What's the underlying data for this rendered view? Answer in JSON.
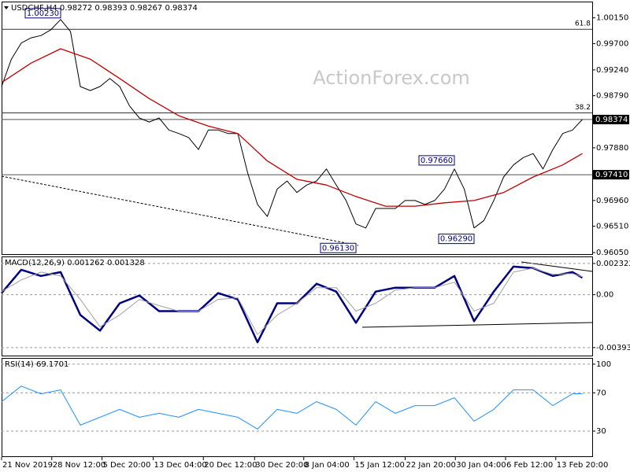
{
  "chart_data": [
    {
      "type": "line",
      "title": "USDCHF,H4  0.98272 0.98393 0.98267 0.98374",
      "watermark": "ActionForex.com",
      "xlim": [
        0,
        60
      ],
      "ylim": [
        0.9601,
        1.0042
      ],
      "yticks": [
        {
          "value": 1.0015,
          "label": "1.00150"
        },
        {
          "value": 0.997,
          "label": "0.99700"
        },
        {
          "value": 0.9924,
          "label": "0.99240"
        },
        {
          "value": 0.9879,
          "label": "0.98790"
        },
        {
          "value": 0.9788,
          "label": "0.97880"
        },
        {
          "value": 0.9696,
          "label": "0.96960"
        },
        {
          "value": 0.9651,
          "label": "0.96510"
        },
        {
          "value": 0.9605,
          "label": "0.96050"
        }
      ],
      "grid": false,
      "series": [
        {
          "color": "#000000",
          "x": [
            0,
            1,
            2,
            3,
            4,
            5,
            6,
            7,
            8,
            9,
            10,
            11,
            12,
            13,
            14,
            15,
            16,
            17,
            18,
            19,
            20,
            21,
            22,
            23,
            24,
            25,
            26,
            27,
            28,
            29,
            30,
            31,
            32,
            33,
            34,
            35,
            36,
            37,
            38,
            39,
            40,
            41,
            42,
            43,
            44,
            45,
            46,
            47,
            48,
            49,
            50,
            51,
            52,
            53,
            54,
            55,
            56,
            57,
            58,
            59
          ],
          "values": [
            0.9895,
            0.9943,
            0.9971,
            0.998,
            0.9984,
            0.9994,
            1.0012,
            0.9991,
            0.9895,
            0.9888,
            0.9895,
            0.9909,
            0.9895,
            0.9861,
            0.984,
            0.9833,
            0.984,
            0.9819,
            0.9813,
            0.9806,
            0.9785,
            0.9819,
            0.9819,
            0.9813,
            0.9813,
            0.9744,
            0.9689,
            0.9668,
            0.9716,
            0.973,
            0.971,
            0.9723,
            0.973,
            0.9751,
            0.9723,
            0.9696,
            0.9655,
            0.9648,
            0.9682,
            0.9682,
            0.9682,
            0.9696,
            0.9696,
            0.9689,
            0.9696,
            0.9716,
            0.9751,
            0.9716,
            0.9648,
            0.9661,
            0.9696,
            0.9737,
            0.9758,
            0.9771,
            0.9778,
            0.9751,
            0.9785,
            0.9813,
            0.9819,
            0.98374
          ]
        },
        {
          "color": "#c00000",
          "x": [
            0,
            3,
            6,
            9,
            12,
            15,
            18,
            21,
            24,
            27,
            30,
            33,
            36,
            39,
            42,
            45,
            48,
            51,
            54,
            57,
            59
          ],
          "values": [
            0.9902,
            0.9936,
            0.9961,
            0.9943,
            0.9909,
            0.9874,
            0.9844,
            0.9826,
            0.9813,
            0.9765,
            0.9733,
            0.9723,
            0.9703,
            0.9686,
            0.9686,
            0.9692,
            0.9696,
            0.971,
            0.9737,
            0.9758,
            0.9778
          ]
        }
      ],
      "fib_levels": [
        {
          "value": 0.9995,
          "label": "61.8"
        },
        {
          "value": 0.9849,
          "label": "38.2"
        }
      ],
      "hlines": [
        {
          "value": 0.98374,
          "label": "0.98374"
        },
        {
          "value": 0.9741,
          "label": "0.97410"
        }
      ],
      "annotations": [
        {
          "x": 6,
          "value": 1.0023,
          "label": "1.00230"
        },
        {
          "x": 46,
          "value": 0.9766,
          "label": "0.97660"
        },
        {
          "x": 36,
          "value": 0.9613,
          "label": "0.96130"
        },
        {
          "x": 48,
          "value": 0.9629,
          "label": "0.96290"
        }
      ]
    },
    {
      "type": "line",
      "title": "MACD(12,26,9) 0.001262 0.001328",
      "xlim": [
        0,
        60
      ],
      "ylim": [
        -0.004527,
        0.002786
      ],
      "yticks": [
        0.002322,
        {
          "value": 0,
          "label": "0.00"
        },
        -0.003932
      ],
      "grid": true,
      "series": [
        {
          "color": "#000080",
          "x": [
            0,
            2,
            4,
            6,
            8,
            10,
            12,
            14,
            16,
            18,
            20,
            22,
            24,
            26,
            28,
            30,
            32,
            34,
            36,
            38,
            40,
            42,
            44,
            46,
            48,
            50,
            52,
            54,
            56,
            58,
            59
          ],
          "values": [
            0.000116,
            0.001857,
            0.001393,
            0.001683,
            -0.001509,
            -0.00267,
            -0.000638,
            -5.8e-05,
            -0.001219,
            -0.001219,
            -0.001219,
            0.000116,
            -0.000348,
            -0.00354,
            -0.000638,
            -0.000638,
            0.000813,
            0.000232,
            -0.002089,
            0.000232,
            0.000522,
            0.000522,
            0.000522,
            0.001393,
            -0.001973,
            0.000232,
            0.002089,
            0.001973,
            0.001393,
            0.001683,
            0.001262
          ]
        },
        {
          "color": "#a0a0a0",
          "x": [
            0,
            2,
            4,
            6,
            8,
            10,
            12,
            14,
            16,
            18,
            20,
            22,
            24,
            26,
            28,
            30,
            32,
            34,
            36,
            38,
            40,
            42,
            44,
            46,
            48,
            50,
            52,
            54,
            56,
            58,
            59
          ],
          "values": [
            0.000232,
            0.001103,
            0.001683,
            0.001393,
            -0.000348,
            -0.00238,
            -0.001509,
            -0.000348,
            -0.000813,
            -0.001219,
            -0.001219,
            -0.000348,
            -0.000232,
            -0.00296,
            -0.001509,
            -0.000638,
            0.000522,
            0.000522,
            -0.001219,
            -0.000638,
            0.000348,
            0.000522,
            0.000522,
            0.000929,
            -0.001219,
            -0.000638,
            0.001683,
            0.001973,
            0.001509,
            0.001567,
            0.001328
          ]
        }
      ]
    },
    {
      "type": "line",
      "title": "RSI(14) 69.1701",
      "xlim": [
        0,
        60
      ],
      "ylim": [
        3.7,
        105.7
      ],
      "yticks": [
        100,
        70,
        30
      ],
      "grid": true,
      "xticks": [
        {
          "value": 0,
          "label": "21 Nov 2019"
        },
        {
          "value": 5.1,
          "label": "28 Nov 12:00"
        },
        {
          "value": 10.2,
          "label": "5 Dec 20:00"
        },
        {
          "value": 15.4,
          "label": "13 Dec 04:00"
        },
        {
          "value": 20.5,
          "label": "20 Dec 12:00"
        },
        {
          "value": 25.7,
          "label": "30 Dec 20:00"
        },
        {
          "value": 30.7,
          "label": "8 Jan 04:00"
        },
        {
          "value": 35.8,
          "label": "15 Jan 12:00"
        },
        {
          "value": 41,
          "label": "22 Jan 20:00"
        },
        {
          "value": 46.1,
          "label": "30 Jan 04:00"
        },
        {
          "value": 51.2,
          "label": "6 Feb 12:00"
        },
        {
          "value": 56.3,
          "label": "13 Feb 20:00"
        }
      ],
      "series": [
        {
          "color": "#1e90ff",
          "x": [
            0,
            2,
            4,
            6,
            8,
            10,
            12,
            14,
            16,
            18,
            20,
            22,
            24,
            26,
            28,
            30,
            32,
            34,
            36,
            38,
            40,
            42,
            44,
            46,
            48,
            50,
            52,
            54,
            56,
            58,
            59
          ],
          "values": [
            60.8,
            77.1,
            69.0,
            73.1,
            36.3,
            44.5,
            52.7,
            44.5,
            48.6,
            44.5,
            52.7,
            48.6,
            44.5,
            32.2,
            52.7,
            48.6,
            60.8,
            52.7,
            36.3,
            60.8,
            48.6,
            56.7,
            56.7,
            64.9,
            40.4,
            52.7,
            73.1,
            73.1,
            56.7,
            69.0,
            69.1701
          ]
        }
      ]
    }
  ]
}
